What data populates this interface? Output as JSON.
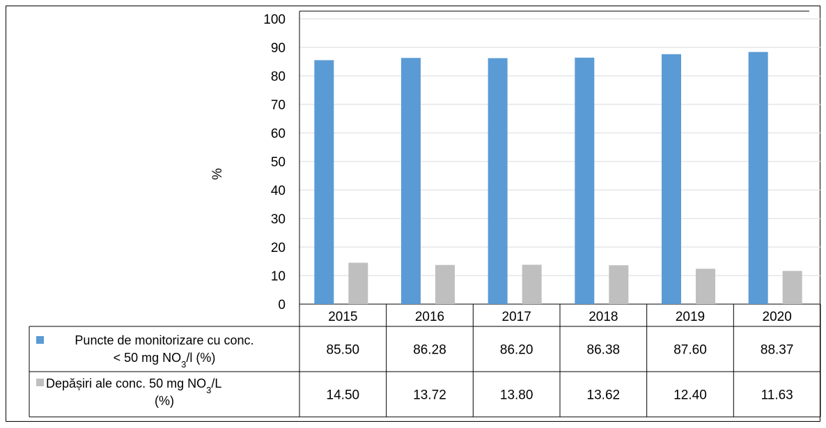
{
  "chart_data": {
    "type": "bar",
    "title": "",
    "xlabel": "",
    "ylabel": "%",
    "ylim": [
      0,
      100
    ],
    "yticks": [
      "0",
      "10",
      "20",
      "30",
      "40",
      "50",
      "60",
      "70",
      "80",
      "90",
      "100"
    ],
    "grid": true,
    "legend": "data-table",
    "categories": [
      "2015",
      "2016",
      "2017",
      "2018",
      "2019",
      "2020"
    ],
    "series": [
      {
        "name_lines": [
          "Puncte de  monitorizare cu conc.",
          "< 50 mg NO",
          "3",
          "/l (%)"
        ],
        "color": "#5b9bd5",
        "values": [
          85.5,
          86.28,
          86.2,
          86.38,
          87.6,
          88.37
        ],
        "labels": [
          "85.50",
          "86.28",
          "86.20",
          "86.38",
          "87.60",
          "88.37"
        ]
      },
      {
        "name_lines": [
          "Depășiri ale conc. 50 mg NO",
          "3",
          "/L",
          "(%)"
        ],
        "color": "#bfbfbf",
        "values": [
          14.5,
          13.72,
          13.8,
          13.62,
          12.4,
          11.63
        ],
        "labels": [
          "14.50",
          "13.72",
          "13.80",
          "13.62",
          "12.40",
          "11.63"
        ]
      }
    ]
  }
}
